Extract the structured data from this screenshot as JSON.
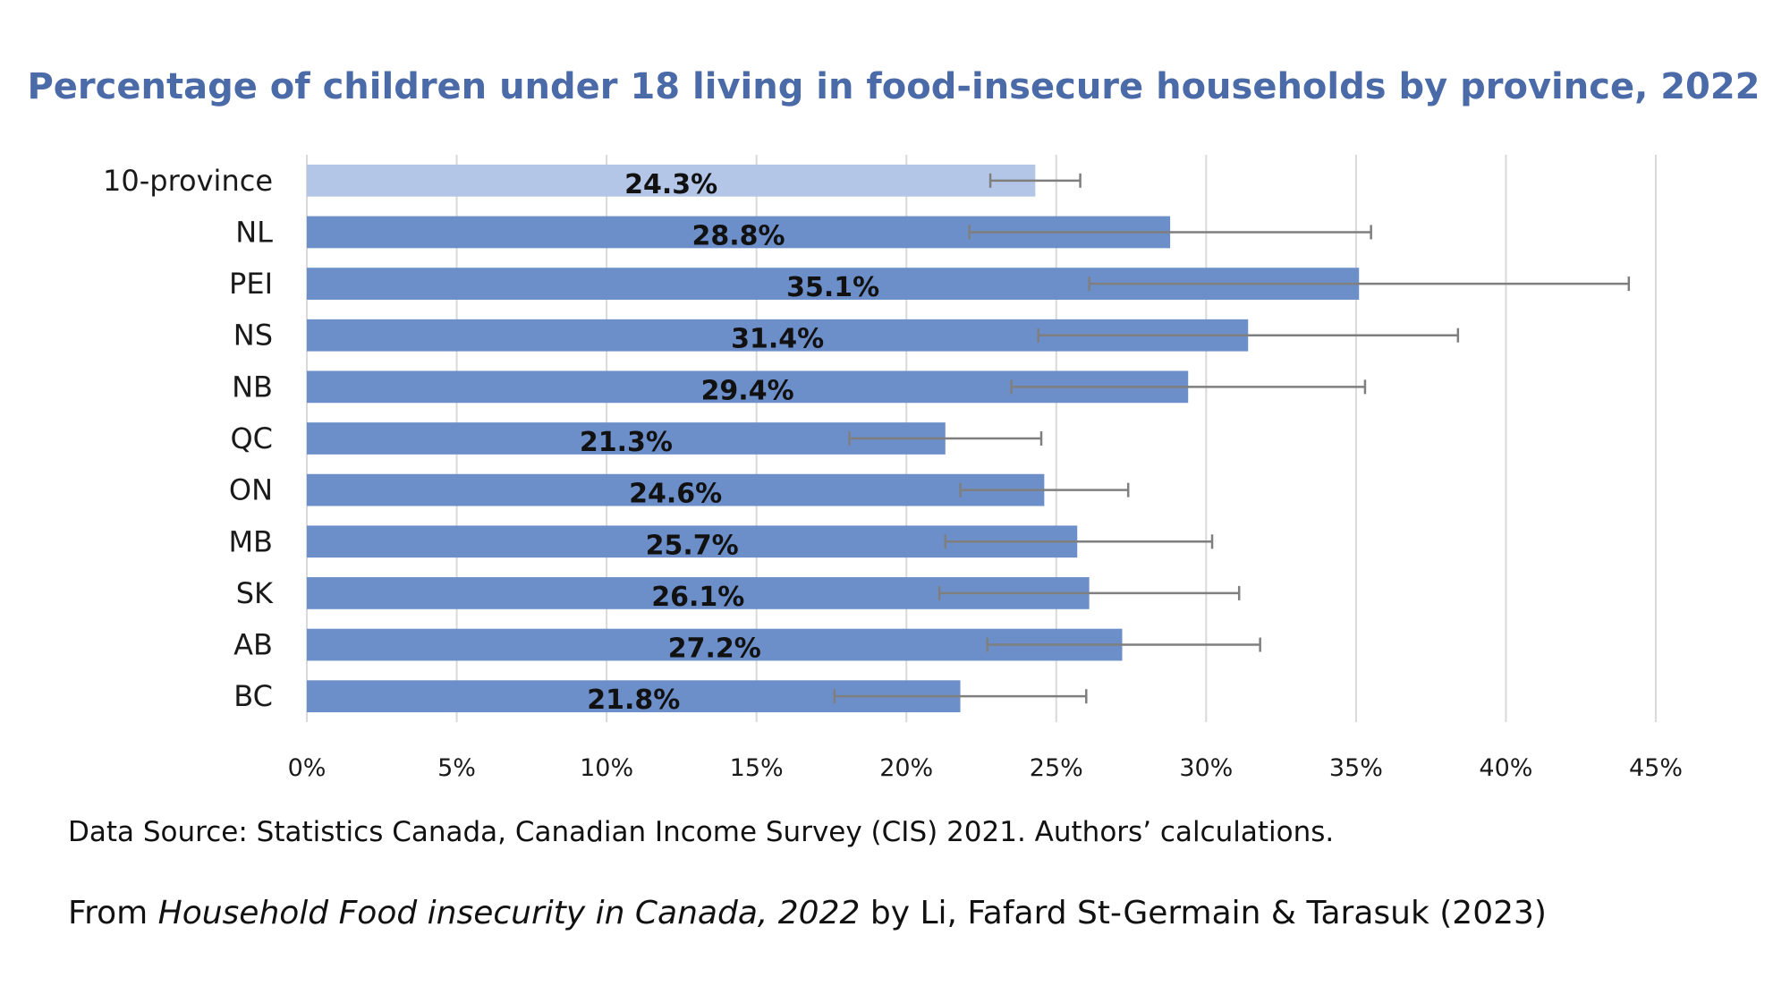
{
  "chart_data": {
    "type": "bar",
    "orientation": "horizontal",
    "title": "Percentage of children under 18 living in food-insecure households by province, 2022",
    "categories": [
      "10-province",
      "NL",
      "PEI",
      "NS",
      "NB",
      "QC",
      "ON",
      "MB",
      "SK",
      "AB",
      "BC"
    ],
    "values": [
      24.3,
      28.8,
      35.1,
      31.4,
      29.4,
      21.3,
      24.6,
      25.7,
      26.1,
      27.2,
      21.8
    ],
    "data_labels": [
      "24.3%",
      "28.8%",
      "35.1%",
      "31.4%",
      "29.4%",
      "21.3%",
      "24.6%",
      "25.7%",
      "26.1%",
      "27.2%",
      "21.8%"
    ],
    "error_low": [
      22.8,
      22.1,
      26.1,
      24.4,
      23.5,
      18.1,
      21.8,
      21.3,
      21.1,
      22.7,
      17.6
    ],
    "error_high": [
      25.8,
      35.5,
      44.1,
      38.4,
      35.3,
      24.5,
      27.4,
      30.2,
      31.1,
      31.8,
      26.0
    ],
    "xlim": [
      0,
      45
    ],
    "xticks": [
      0,
      5,
      10,
      15,
      20,
      25,
      30,
      35,
      40,
      45
    ],
    "xtick_labels": [
      "0%",
      "5%",
      "10%",
      "15%",
      "20%",
      "25%",
      "30%",
      "35%",
      "40%",
      "45%"
    ],
    "grid": "vertical",
    "colors": {
      "bar": "#6C8FC9",
      "highlight_bar": "#B4C6E7",
      "error_bar": "#7F7F7F",
      "gridline": "#D9D9D9",
      "title": "#4A6AA8"
    }
  },
  "footer": {
    "source": "Data Source: Statistics Canada, Canadian Income Survey (CIS) 2021. Authors’ calculations.",
    "credit_prefix": "From ",
    "credit_title": "Household Food insecurity in Canada, 2022",
    "credit_suffix": " by Li, Fafard St-Germain & Tarasuk (2023)"
  }
}
